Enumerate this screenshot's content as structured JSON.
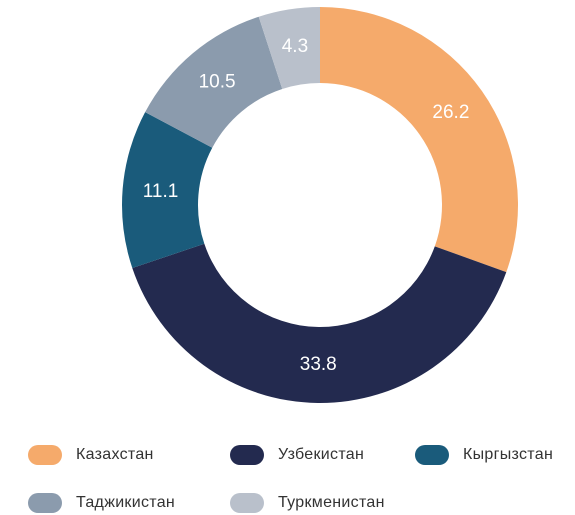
{
  "chart_data": {
    "type": "donut",
    "categories": [
      "Казахстан",
      "Узбекистан",
      "Кыргызстан",
      "Таджикистан",
      "Туркменистан"
    ],
    "values": [
      26.2,
      33.8,
      11.1,
      10.5,
      4.3
    ],
    "colors": [
      "#f5aa6b",
      "#232a4f",
      "#1a5b7b",
      "#8b9bad",
      "#b9c0cb"
    ],
    "legend": "bottom"
  }
}
